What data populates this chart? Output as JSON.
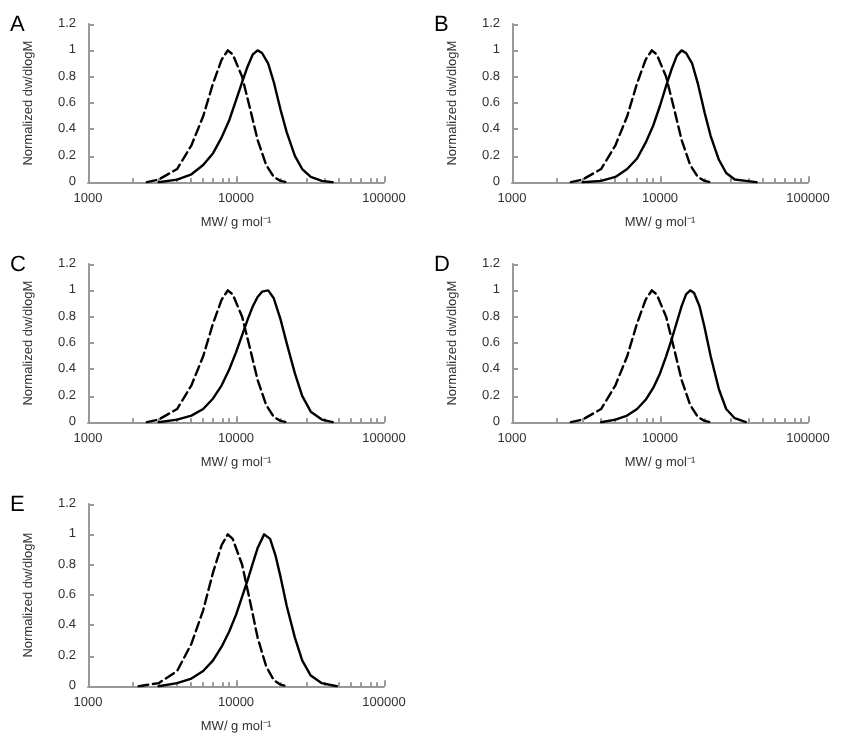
{
  "chart_data": [
    {
      "type": "line",
      "title": "A",
      "xlabel": "MW/ g mol⁻¹",
      "ylabel": "Normalized dw/dlogM",
      "log": "x",
      "xlim": [
        1000,
        100000
      ],
      "xticks": [
        1000,
        10000,
        100000
      ],
      "ylim": [
        0,
        1.2
      ],
      "yticks": [
        0,
        0.2,
        0.4,
        0.6,
        0.8,
        1,
        1.2
      ],
      "marker": "none",
      "series": [
        {
          "color": "#000000",
          "line_style": "dashed",
          "x": [
            2500,
            3000,
            4000,
            5000,
            6000,
            7000,
            8000,
            8800,
            9500,
            11000,
            12500,
            14000,
            16000,
            18000,
            20000,
            22000
          ],
          "values": [
            0,
            0.02,
            0.1,
            0.28,
            0.5,
            0.75,
            0.93,
            1,
            0.97,
            0.8,
            0.55,
            0.32,
            0.13,
            0.04,
            0.01,
            0
          ]
        },
        {
          "color": "#000000",
          "line_style": "solid",
          "x": [
            3000,
            4000,
            5000,
            6000,
            7000,
            8000,
            9000,
            10000,
            11000,
            12000,
            13000,
            14000,
            15000,
            16500,
            18000,
            20000,
            22000,
            25000,
            28000,
            32000,
            38000,
            45000
          ],
          "values": [
            0,
            0.02,
            0.06,
            0.13,
            0.22,
            0.34,
            0.47,
            0.62,
            0.76,
            0.88,
            0.97,
            1,
            0.98,
            0.9,
            0.76,
            0.55,
            0.38,
            0.2,
            0.1,
            0.04,
            0.01,
            0
          ]
        }
      ]
    },
    {
      "type": "line",
      "title": "B",
      "xlabel": "MW/ g mol⁻¹",
      "ylabel": "Normalized dw/dlogM",
      "log": "x",
      "xlim": [
        1000,
        100000
      ],
      "xticks": [
        1000,
        10000,
        100000
      ],
      "ylim": [
        0,
        1.2
      ],
      "yticks": [
        0,
        0.2,
        0.4,
        0.6,
        0.8,
        1,
        1.2
      ],
      "marker": "none",
      "series": [
        {
          "color": "#000000",
          "line_style": "dashed",
          "x": [
            2500,
            3000,
            4000,
            5000,
            6000,
            7000,
            8000,
            8800,
            9500,
            11000,
            12500,
            14000,
            16000,
            18000,
            20000,
            22000
          ],
          "values": [
            0,
            0.02,
            0.1,
            0.28,
            0.5,
            0.75,
            0.93,
            1,
            0.97,
            0.8,
            0.55,
            0.32,
            0.13,
            0.04,
            0.01,
            0
          ]
        },
        {
          "color": "#000000",
          "line_style": "solid",
          "x": [
            3000,
            4000,
            5000,
            6000,
            7000,
            8000,
            9000,
            10000,
            11000,
            12000,
            13000,
            14000,
            15000,
            16500,
            18000,
            20000,
            22000,
            25000,
            28000,
            32000,
            38000,
            45000
          ],
          "values": [
            0,
            0.01,
            0.04,
            0.1,
            0.18,
            0.3,
            0.43,
            0.58,
            0.73,
            0.86,
            0.96,
            1,
            0.98,
            0.9,
            0.75,
            0.53,
            0.35,
            0.17,
            0.07,
            0.02,
            0.01,
            0
          ]
        }
      ]
    },
    {
      "type": "line",
      "title": "C",
      "xlabel": "MW/ g mol⁻¹",
      "ylabel": "Normalized dw/dlogM",
      "log": "x",
      "xlim": [
        1000,
        100000
      ],
      "xticks": [
        1000,
        10000,
        100000
      ],
      "ylim": [
        0,
        1.2
      ],
      "yticks": [
        0,
        0.2,
        0.4,
        0.6,
        0.8,
        1,
        1.2
      ],
      "marker": "none",
      "series": [
        {
          "color": "#000000",
          "line_style": "dashed",
          "x": [
            2500,
            3000,
            4000,
            5000,
            6000,
            7000,
            8000,
            8800,
            9500,
            11000,
            12500,
            14000,
            16000,
            18000,
            20000,
            22000
          ],
          "values": [
            0,
            0.02,
            0.1,
            0.28,
            0.5,
            0.75,
            0.93,
            1,
            0.97,
            0.8,
            0.55,
            0.32,
            0.13,
            0.04,
            0.01,
            0
          ]
        },
        {
          "color": "#000000",
          "line_style": "solid",
          "x": [
            3000,
            4000,
            5000,
            6000,
            7000,
            8000,
            9000,
            10000,
            11000,
            12000,
            13000,
            14000,
            15000,
            16500,
            18000,
            20000,
            22000,
            25000,
            28000,
            32000,
            38000,
            45000
          ],
          "values": [
            0,
            0.02,
            0.05,
            0.1,
            0.18,
            0.28,
            0.4,
            0.53,
            0.66,
            0.78,
            0.88,
            0.95,
            0.99,
            1,
            0.94,
            0.78,
            0.6,
            0.37,
            0.2,
            0.08,
            0.02,
            0
          ]
        }
      ]
    },
    {
      "type": "line",
      "title": "D",
      "xlabel": "MW/ g mol⁻¹",
      "ylabel": "Normalized dw/dlogM",
      "log": "x",
      "xlim": [
        1000,
        100000
      ],
      "xticks": [
        1000,
        10000,
        100000
      ],
      "ylim": [
        0,
        1.2
      ],
      "yticks": [
        0,
        0.2,
        0.4,
        0.6,
        0.8,
        1,
        1.2
      ],
      "marker": "none",
      "series": [
        {
          "color": "#000000",
          "line_style": "dashed",
          "x": [
            2500,
            3000,
            4000,
            5000,
            6000,
            7000,
            8000,
            8800,
            9500,
            11000,
            12500,
            14000,
            16000,
            18000,
            20000,
            22000
          ],
          "values": [
            0,
            0.02,
            0.1,
            0.28,
            0.5,
            0.75,
            0.93,
            1,
            0.97,
            0.8,
            0.55,
            0.32,
            0.13,
            0.04,
            0.01,
            0
          ]
        },
        {
          "color": "#000000",
          "line_style": "solid",
          "x": [
            4000,
            5000,
            6000,
            7000,
            8000,
            9000,
            10000,
            11000,
            12000,
            13000,
            14000,
            15000,
            16000,
            17000,
            18500,
            20000,
            22000,
            25000,
            28000,
            32000,
            38000
          ],
          "values": [
            0,
            0.02,
            0.05,
            0.1,
            0.17,
            0.26,
            0.37,
            0.5,
            0.63,
            0.76,
            0.88,
            0.97,
            1,
            0.98,
            0.88,
            0.72,
            0.5,
            0.25,
            0.1,
            0.03,
            0
          ]
        }
      ]
    },
    {
      "type": "line",
      "title": "E",
      "xlabel": "MW/ g mol⁻¹",
      "ylabel": "Normalized dw/dlogM",
      "log": "x",
      "xlim": [
        1000,
        100000
      ],
      "xticks": [
        1000,
        10000,
        100000
      ],
      "ylim": [
        0,
        1.2
      ],
      "yticks": [
        0,
        0.2,
        0.4,
        0.6,
        0.8,
        1,
        1.2
      ],
      "marker": "none",
      "series": [
        {
          "color": "#000000",
          "line_style": "dashed",
          "x": [
            2200,
            3000,
            4000,
            5000,
            6000,
            7000,
            8000,
            8800,
            9500,
            11000,
            12500,
            14000,
            16000,
            18000,
            20000,
            22000
          ],
          "values": [
            0,
            0.02,
            0.1,
            0.28,
            0.5,
            0.75,
            0.93,
            1,
            0.97,
            0.8,
            0.55,
            0.32,
            0.13,
            0.04,
            0.01,
            0
          ]
        },
        {
          "color": "#000000",
          "line_style": "solid",
          "x": [
            3000,
            4000,
            5000,
            6000,
            7000,
            8000,
            9000,
            10000,
            11000,
            12000,
            13000,
            14000,
            15500,
            17000,
            18500,
            20000,
            22000,
            25000,
            28000,
            32000,
            38000,
            48000
          ],
          "values": [
            0,
            0.02,
            0.05,
            0.1,
            0.17,
            0.26,
            0.36,
            0.47,
            0.59,
            0.7,
            0.81,
            0.91,
            1,
            0.97,
            0.86,
            0.72,
            0.53,
            0.32,
            0.17,
            0.07,
            0.02,
            0
          ]
        }
      ]
    }
  ]
}
